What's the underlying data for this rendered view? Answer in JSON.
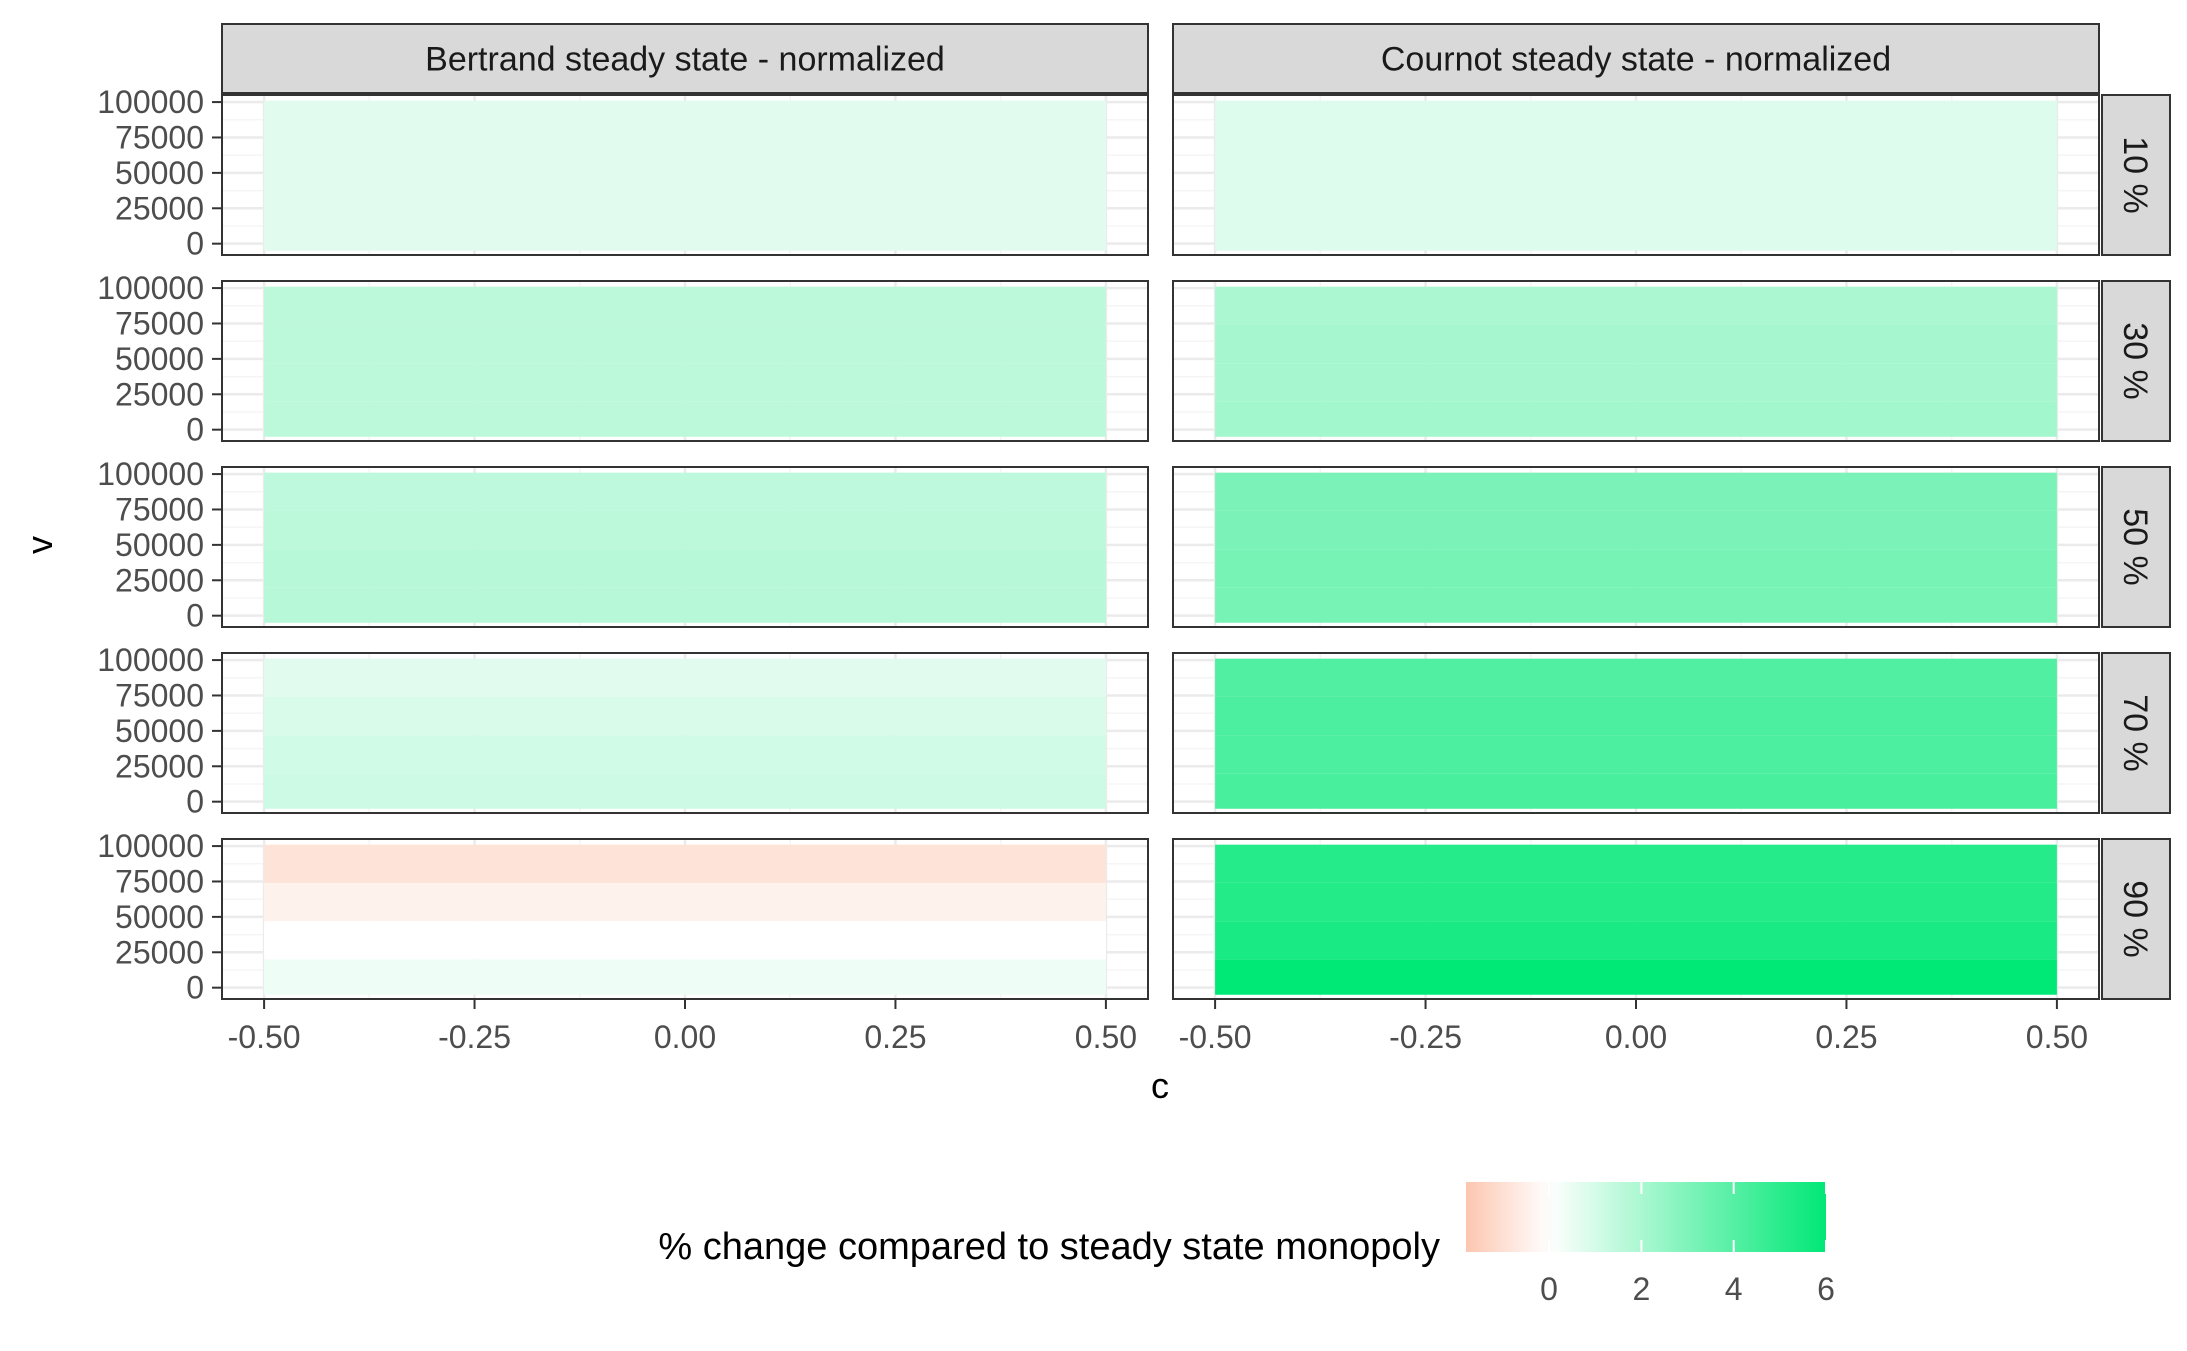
{
  "chart_data": {
    "type": "heatmap",
    "facet_columns": [
      "Bertrand steady state - normalized",
      "Cournot steady state - normalized"
    ],
    "facet_rows": [
      "10 %",
      "30 %",
      "50 %",
      "70 %",
      "90 %"
    ],
    "xlabel": "c",
    "ylabel": "v",
    "x_ticks": [
      "-0.50",
      "-0.25",
      "0.00",
      "0.25",
      "0.50"
    ],
    "x_tick_values": [
      -0.5,
      -0.25,
      0,
      0.25,
      0.5
    ],
    "xlim": [
      -0.55,
      0.55
    ],
    "x_range": [
      -0.5,
      0.5
    ],
    "y_ticks": [
      "100000",
      "75000",
      "50000",
      "25000",
      "0"
    ],
    "y_tick_values": [
      100000,
      75000,
      50000,
      25000,
      0
    ],
    "ylim": [
      -8000,
      105000
    ],
    "y_bands": [
      [
        -5000,
        20000
      ],
      [
        20000,
        47000
      ],
      [
        47000,
        74000
      ],
      [
        74000,
        101000
      ]
    ],
    "values": {
      "Bertrand steady state - normalized": {
        "10 %": [
          0.7,
          0.7,
          0.7,
          0.7
        ],
        "30 %": [
          1.6,
          1.6,
          1.6,
          1.6
        ],
        "50 %": [
          1.7,
          1.7,
          1.6,
          1.5
        ],
        "70 %": [
          1.2,
          1.1,
          0.9,
          0.7
        ],
        "90 %": [
          0.4,
          0.0,
          -0.4,
          -0.9
        ]
      },
      "Cournot steady state - normalized": {
        "10 %": [
          0.8,
          0.8,
          0.8,
          0.8
        ],
        "30 %": [
          2.2,
          2.1,
          2.1,
          2.0
        ],
        "50 %": [
          3.2,
          3.2,
          3.1,
          3.1
        ],
        "70 %": [
          4.3,
          4.2,
          4.2,
          4.1
        ],
        "90 %": [
          6.0,
          5.4,
          5.2,
          5.1
        ]
      }
    },
    "legend": {
      "title": "% change compared to steady state monopoly",
      "ticks": [
        "0",
        "2",
        "4",
        "6"
      ],
      "tick_values": [
        0,
        2,
        4,
        6
      ],
      "range": [
        -1.8,
        6.0
      ],
      "placement": "bottom"
    },
    "colors": {
      "low": "#fcc6b0",
      "mid": "#ffffff",
      "high": "#00e876",
      "strip_fill": "#d9d9d9",
      "panel_border": "#333333",
      "grid_major": "#ebebeb",
      "grid_minor": "#f5f5f5"
    }
  }
}
